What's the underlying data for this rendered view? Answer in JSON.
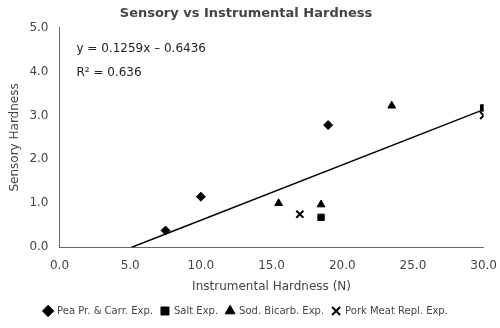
{
  "chart_data": {
    "type": "scatter",
    "title": "Sensory vs Instrumental Hardness",
    "xlabel": "Instrumental Hardness (N)",
    "ylabel": "Sensory Hardness",
    "xlim": [
      0.0,
      30.0
    ],
    "ylim": [
      0.0,
      5.0
    ],
    "xticks": [
      {
        "value": 0,
        "label": "0.0"
      },
      {
        "value": 5,
        "label": "5.0"
      },
      {
        "value": 10,
        "label": "10.0"
      },
      {
        "value": 15,
        "label": "15.0"
      },
      {
        "value": 20,
        "label": "20.0"
      },
      {
        "value": 25,
        "label": "25.0"
      },
      {
        "value": 30,
        "label": "30.0"
      }
    ],
    "yticks": [
      {
        "value": 0,
        "label": "0.0"
      },
      {
        "value": 1,
        "label": "1.0"
      },
      {
        "value": 2,
        "label": "2.0"
      },
      {
        "value": 3,
        "label": "3.0"
      },
      {
        "value": 4,
        "label": "4.0"
      },
      {
        "value": 5,
        "label": "5.0"
      }
    ],
    "grid": false,
    "legend": "bottom",
    "annotations": [
      "y = 0.1259x – 0.6436",
      "R² = 0.636"
    ],
    "series": [
      {
        "type": "line",
        "color": "#000000",
        "line_style": "solid",
        "x": [
          5.1119936,
          30.0
        ],
        "values": [
          0.0,
          3.1334
        ]
      },
      {
        "name": "Pea Pr. & Carr. Exp.",
        "color": "#000000",
        "marker": "diamond",
        "x": [
          7.5,
          10.0,
          19.0
        ],
        "values": [
          0.38,
          1.15,
          2.78
        ]
      },
      {
        "name": "Salt Exp.",
        "color": "#000000",
        "marker": "square",
        "x": [
          18.5,
          30.0
        ],
        "values": [
          0.68,
          3.17
        ]
      },
      {
        "name": "Sod. Bicarb. Exp.",
        "color": "#000000",
        "marker": "triangle",
        "x": [
          15.5,
          18.5,
          23.5
        ],
        "values": [
          1.0,
          0.97,
          3.22
        ]
      },
      {
        "name": "Pork Meat Repl. Exp.",
        "color": "#000000",
        "marker": "x",
        "x": [
          17.0,
          30.0
        ],
        "values": [
          0.75,
          3.0
        ]
      }
    ]
  }
}
